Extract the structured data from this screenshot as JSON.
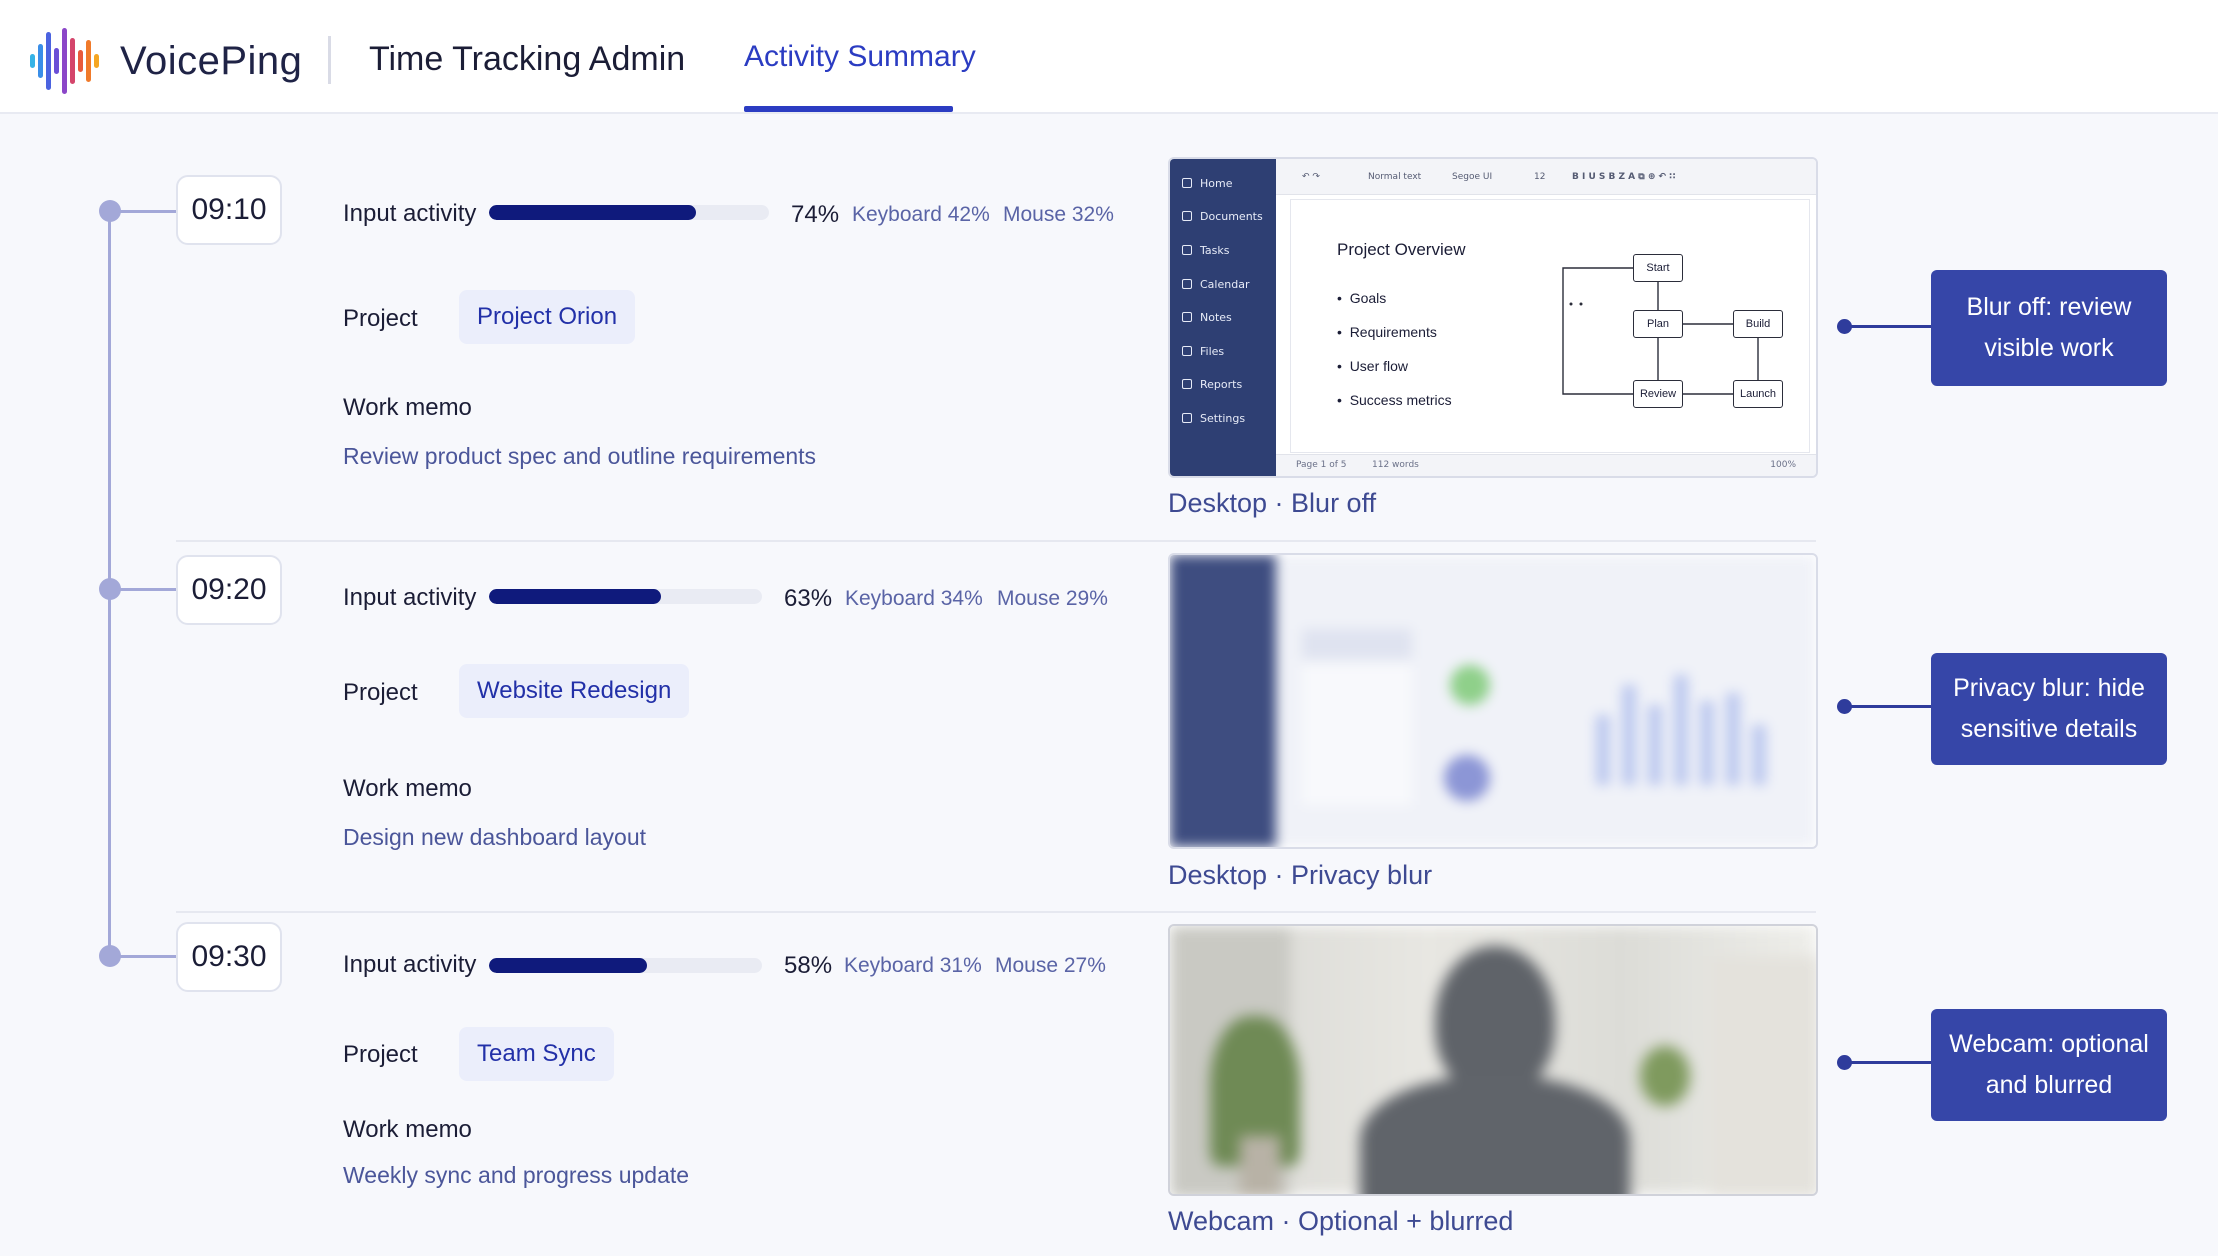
{
  "header": {
    "brand": "VoicePing",
    "app_title": "Time Tracking Admin",
    "tab_label": "Activity Summary"
  },
  "entries": [
    {
      "time": "09:10",
      "input_label": "Input activity",
      "activity": 0.74,
      "pct": "74%",
      "keyboard": "Keyboard 42%",
      "mouse": "Mouse 32%",
      "project_label": "Project",
      "project": "Project Orion",
      "memo_label": "Work memo",
      "memo": "Review product spec and outline requirements",
      "caption": "Desktop · Blur off",
      "callout": "Blur off: review visible work"
    },
    {
      "time": "09:20",
      "input_label": "Input activity",
      "activity": 0.63,
      "pct": "63%",
      "keyboard": "Keyboard 34%",
      "mouse": "Mouse 29%",
      "project_label": "Project",
      "project": "Website Redesign",
      "memo_label": "Work memo",
      "memo": "Design new dashboard layout",
      "caption": "Desktop · Privacy blur",
      "callout": "Privacy blur: hide sensitive details"
    },
    {
      "time": "09:30",
      "input_label": "Input activity",
      "activity": 0.58,
      "pct": "58%",
      "keyboard": "Keyboard 31%",
      "mouse": "Mouse 27%",
      "project_label": "Project",
      "project": "Team Sync",
      "memo_label": "Work memo",
      "memo": "Weekly sync and progress update",
      "caption": "Webcam · Optional + blurred",
      "callout": "Webcam: optional and blurred"
    }
  ],
  "doc_screenshot": {
    "sidebar": [
      "Home",
      "Documents",
      "Tasks",
      "Calendar",
      "Notes",
      "Files",
      "Reports",
      "Settings"
    ],
    "toolbar_style": "Normal text",
    "toolbar_font": "Segoe UI",
    "toolbar_size": "12",
    "heading": "Project Overview",
    "bullets": [
      "Goals",
      "Requirements",
      "User flow",
      "Success metrics"
    ],
    "flow": [
      "Start",
      "Plan",
      "Build",
      "Review",
      "Launch"
    ],
    "status_page": "Page 1 of 5",
    "status_words": "112 words",
    "status_zoom": "100%"
  },
  "colors": {
    "accent": "#2b3cc2",
    "bar": "#0f1a7c",
    "callout": "#3646a8",
    "timeline": "#a3a8d8"
  }
}
